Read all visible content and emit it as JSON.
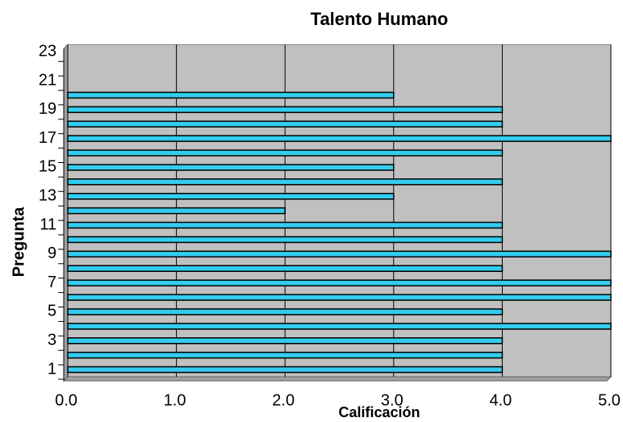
{
  "chart_data": {
    "type": "bar",
    "orientation": "horizontal",
    "title": "Talento Humano",
    "x_label": "Calificación",
    "y_label": "Pregunta",
    "categories": [
      "1",
      null,
      "3",
      null,
      "5",
      null,
      "7",
      null,
      "9",
      null,
      "11",
      null,
      "13",
      null,
      "15",
      null,
      "17",
      null,
      "19",
      null,
      "21",
      null,
      "23"
    ],
    "values": [
      4,
      4,
      4,
      5,
      4,
      5,
      5,
      4,
      5,
      4,
      4,
      2,
      3,
      4,
      3,
      4,
      5,
      4,
      4,
      3,
      null,
      null,
      null
    ],
    "color": "#33ccee",
    "xlim": [
      0,
      5
    ],
    "xticks": [
      {
        "value": 0,
        "label": "0.0"
      },
      {
        "value": 1,
        "label": "1.0"
      },
      {
        "value": 2,
        "label": "2.0"
      },
      {
        "value": 3,
        "label": "3.0"
      },
      {
        "value": 4,
        "label": "4.0"
      },
      {
        "value": 5,
        "label": "5.0"
      }
    ],
    "grid": true
  }
}
